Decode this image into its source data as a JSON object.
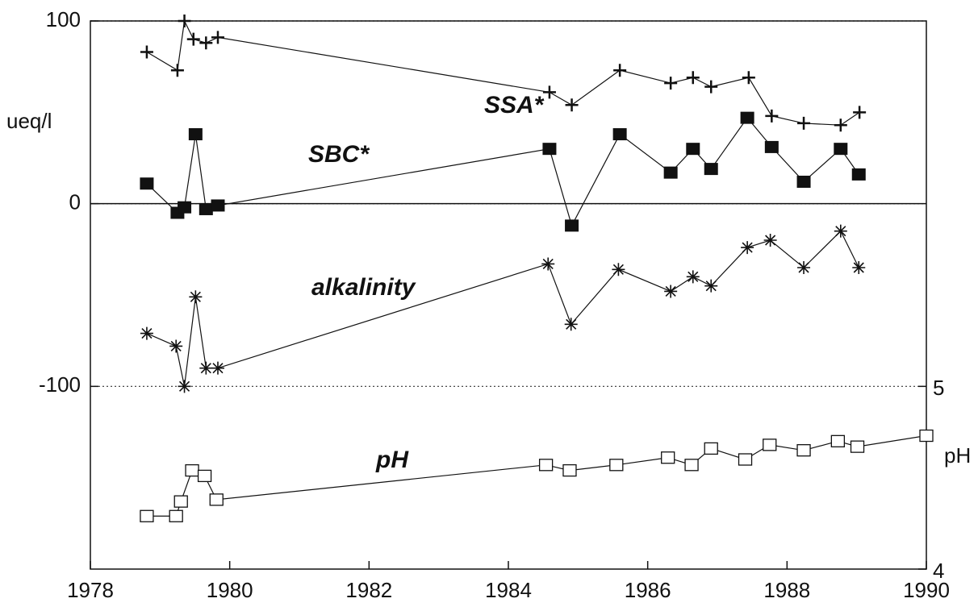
{
  "chart_data": {
    "type": "line",
    "ylabel": "ueq/l",
    "y2label": "pH",
    "xlim": [
      1978,
      1990
    ],
    "xticks": [
      1978,
      1980,
      1982,
      1984,
      1986,
      1988,
      1990
    ],
    "ylim": [
      -200,
      100
    ],
    "yticks": [
      -100,
      0,
      100
    ],
    "y2lim": [
      4,
      7
    ],
    "y2ticks": [
      4,
      5
    ],
    "grid": true,
    "series": [
      {
        "name": "SSA*",
        "color": "#111111",
        "marker": "plus",
        "x": [
          1978.81,
          1979.25,
          1979.35,
          1979.48,
          1979.66,
          1979.83,
          1984.59,
          1984.91,
          1985.6,
          1986.33,
          1986.65,
          1986.91,
          1987.45,
          1987.78,
          1988.24,
          1988.77,
          1989.04
        ],
        "values": [
          83,
          73,
          100,
          90,
          88,
          91,
          61,
          54,
          73,
          66,
          69,
          64,
          69,
          48,
          44,
          43,
          50
        ]
      },
      {
        "name": "SBC*",
        "color": "#111111",
        "marker": "filled-square",
        "x": [
          1978.81,
          1979.25,
          1979.35,
          1979.51,
          1979.66,
          1979.83,
          1984.59,
          1984.91,
          1985.6,
          1986.33,
          1986.65,
          1986.91,
          1987.43,
          1987.78,
          1988.24,
          1988.77,
          1989.03
        ],
        "values": [
          11,
          -5,
          -2,
          38,
          -3,
          -1,
          30,
          -12,
          38,
          17,
          30,
          19,
          47,
          31,
          12,
          30,
          16
        ]
      },
      {
        "name": "alkalinity",
        "color": "#111111",
        "marker": "asterisk",
        "x": [
          1978.81,
          1979.23,
          1979.35,
          1979.51,
          1979.66,
          1979.83,
          1984.57,
          1984.9,
          1985.58,
          1986.33,
          1986.65,
          1986.91,
          1987.43,
          1987.76,
          1988.24,
          1988.77,
          1989.03
        ],
        "values": [
          -71,
          -78,
          -100,
          -51,
          -90,
          -90,
          -33,
          -66,
          -36,
          -48,
          -40,
          -45,
          -24,
          -20,
          -35,
          -15,
          -35
        ]
      },
      {
        "name": "pH",
        "color": "#111111",
        "marker": "open-square",
        "axis": "y2",
        "x": [
          1978.81,
          1979.23,
          1979.3,
          1979.46,
          1979.64,
          1979.81,
          1984.54,
          1984.88,
          1985.55,
          1986.29,
          1986.63,
          1986.91,
          1987.4,
          1987.75,
          1988.24,
          1988.73,
          1989.01,
          1990.0
        ],
        "values": [
          4.29,
          4.29,
          4.37,
          4.54,
          4.51,
          4.38,
          4.57,
          4.54,
          4.57,
          4.61,
          4.57,
          4.66,
          4.6,
          4.68,
          4.65,
          4.7,
          4.67,
          4.73
        ]
      }
    ]
  }
}
